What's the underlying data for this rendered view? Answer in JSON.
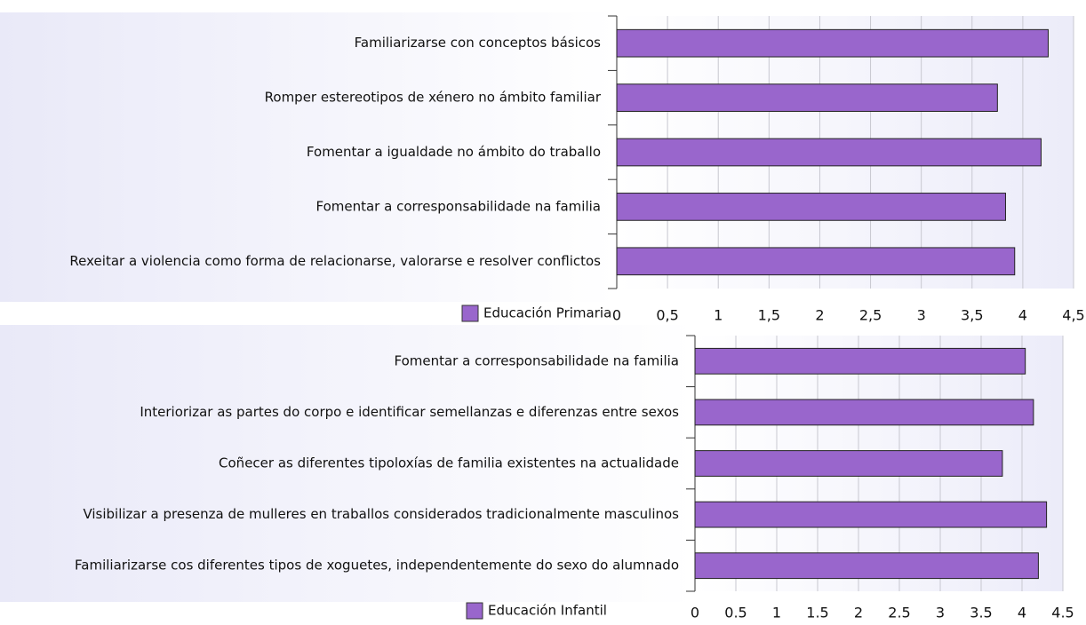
{
  "chart_data": [
    {
      "type": "bar",
      "orientation": "horizontal",
      "categories": [
        "Familiarizarse con conceptos básicos",
        "Romper estereotipos de xénero no ámbito familiar",
        "Fomentar a igualdade no ámbito do traballo",
        "Fomentar a corresponsabilidade na familia",
        "Rexeitar a violencia como forma de relacionarse, valorarse e resolver conflictos"
      ],
      "series": [
        {
          "name": "Educación Primaria",
          "color": "#9966cc",
          "values": [
            4.25,
            3.75,
            4.18,
            3.83,
            3.92
          ]
        }
      ],
      "xlim": [
        0,
        4.5
      ],
      "xticks": [
        0,
        {
          "value": 0.5,
          "label": "0,5"
        },
        1,
        {
          "value": 1.5,
          "label": "1,5"
        },
        2,
        {
          "value": 2.5,
          "label": "2,5"
        },
        3,
        {
          "value": 3.5,
          "label": "3,5"
        },
        4,
        {
          "value": 4.5,
          "label": "4,5"
        }
      ],
      "grid": true,
      "legend": "bottom"
    },
    {
      "type": "bar",
      "orientation": "horizontal",
      "categories": [
        "Fomentar a corresponsabilidade na familia",
        "Interiorizar as partes do corpo e identificar semellanzas e diferenzas entre sexos",
        "Coñecer as diferentes tipoloxías de familia existentes na actualidade",
        "Visibilizar a presenza de mulleres en traballos considerados tradicionalmente masculinos",
        "Familiarizarse cos diferentes tipos de xoguetes, independentemente do sexo do alumnado"
      ],
      "series": [
        {
          "name": "Educación Infantil",
          "color": "#9966cc",
          "values": [
            4.04,
            4.14,
            3.76,
            4.3,
            4.2
          ]
        }
      ],
      "xlim": [
        0,
        4.5
      ],
      "xticks": [
        0,
        0.5,
        1,
        1.5,
        2,
        2.5,
        3,
        3.5,
        4,
        4.5
      ],
      "grid": true,
      "legend": "bottom"
    }
  ]
}
